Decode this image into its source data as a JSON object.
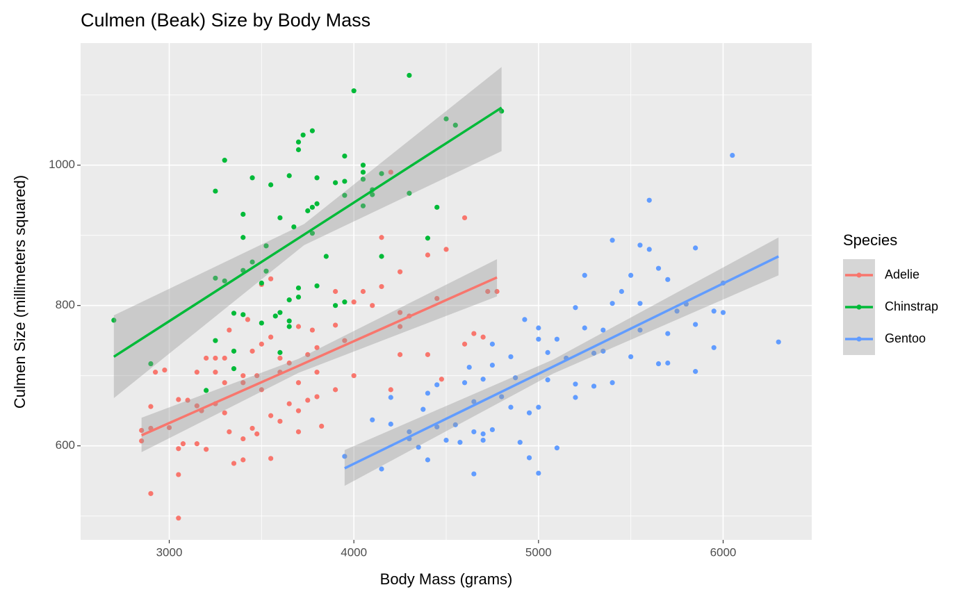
{
  "chart_data": {
    "type": "scatter",
    "title": "Culmen (Beak) Size by Body Mass",
    "x_label": "Body Mass (grams)",
    "y_label": "Culmen Size (millimeters squared)",
    "legend_title": "Species",
    "legend_position": "right",
    "xlim": [
      2520,
      6480
    ],
    "ylim": [
      466,
      1174
    ],
    "xticks": [
      3000,
      4000,
      5000,
      6000
    ],
    "yticks": [
      600,
      800,
      1000
    ],
    "xminor": [
      3500,
      4500,
      5500
    ],
    "yminor": [
      500,
      700,
      900,
      1100
    ],
    "grid": true,
    "band_color": "#999999",
    "series": [
      {
        "name": "Adelie",
        "color": "#F8766D",
        "x": [
          2850,
          2850,
          2900,
          2900,
          2900,
          2925,
          2975,
          3000,
          3050,
          3050,
          3050,
          3050,
          3075,
          3100,
          3150,
          3150,
          3150,
          3175,
          3200,
          3200,
          3250,
          3250,
          3250,
          3300,
          3300,
          3300,
          3325,
          3325,
          3350,
          3400,
          3400,
          3400,
          3400,
          3425,
          3450,
          3450,
          3475,
          3475,
          3500,
          3500,
          3500,
          3550,
          3550,
          3550,
          3550,
          3600,
          3600,
          3600,
          3650,
          3650,
          3700,
          3700,
          3700,
          3700,
          3750,
          3750,
          3775,
          3800,
          3800,
          3800,
          3825,
          3900,
          3900,
          3900,
          3950,
          4000,
          4000,
          4050,
          4100,
          4150,
          4150,
          4200,
          4200,
          4250,
          4250,
          4250,
          4250,
          4300,
          4400,
          4400,
          4450,
          4475,
          4500,
          4600,
          4600,
          4650,
          4700,
          4725,
          4775
        ],
        "values": [
          622,
          607,
          656,
          625,
          532,
          705,
          708,
          626,
          666,
          596,
          559,
          497,
          603,
          665,
          705,
          657,
          603,
          650,
          725,
          595,
          725,
          705,
          660,
          725,
          690,
          647,
          765,
          620,
          575,
          700,
          690,
          610,
          580,
          780,
          735,
          625,
          700,
          617,
          830,
          745,
          680,
          838,
          755,
          643,
          582,
          725,
          705,
          635,
          718,
          660,
          770,
          690,
          650,
          620,
          730,
          665,
          765,
          740,
          705,
          670,
          628,
          820,
          772,
          680,
          750,
          805,
          700,
          820,
          800,
          897,
          827,
          990,
          680,
          848,
          790,
          770,
          730,
          785,
          872,
          730,
          810,
          695,
          880,
          925,
          745,
          760,
          755,
          820,
          820
        ],
        "fit": {
          "x": [
            2850,
            3700,
            4775
          ],
          "values": [
            615,
            714,
            840
          ],
          "lower": [
            591,
            704,
            813
          ],
          "upper": [
            640,
            724,
            866
          ]
        }
      },
      {
        "name": "Chinstrap",
        "color": "#00BA38",
        "x": [
          2700,
          2900,
          3250,
          3300,
          3250,
          3300,
          3350,
          3350,
          3350,
          3200,
          3250,
          3400,
          3400,
          3400,
          3400,
          3450,
          3450,
          3500,
          3500,
          3525,
          3525,
          3550,
          3575,
          3600,
          3600,
          3600,
          3650,
          3650,
          3650,
          3650,
          3675,
          3700,
          3700,
          3700,
          3700,
          3725,
          3750,
          3775,
          3775,
          3775,
          3800,
          3800,
          3800,
          3850,
          3900,
          3900,
          3950,
          3950,
          3950,
          3950,
          4000,
          4050,
          4050,
          4050,
          4050,
          4100,
          4100,
          4150,
          4150,
          4300,
          4300,
          4400,
          4450,
          4500,
          4550,
          4800
        ],
        "values": [
          779,
          717,
          963,
          1007,
          839,
          835,
          789,
          735,
          710,
          679,
          750,
          930,
          897,
          850,
          787,
          982,
          862,
          832,
          775,
          885,
          849,
          972,
          785,
          925,
          790,
          733,
          985,
          808,
          778,
          770,
          912,
          1033,
          1022,
          825,
          812,
          1043,
          935,
          1049,
          940,
          903,
          982,
          945,
          828,
          870,
          975,
          800,
          1013,
          977,
          957,
          805,
          1106,
          1000,
          990,
          980,
          942,
          965,
          958,
          988,
          870,
          1128,
          960,
          896,
          940,
          1066,
          1057,
          1077
        ],
        "fit": {
          "x": [
            2700,
            3730,
            4800
          ],
          "values": [
            727,
            901,
            1082
          ],
          "lower": [
            668,
            886,
            1020
          ],
          "upper": [
            786,
            916,
            1140
          ]
        }
      },
      {
        "name": "Gentoo",
        "color": "#619CFF",
        "x": [
          3950,
          4100,
          4150,
          4200,
          4200,
          4300,
          4300,
          4350,
          4375,
          4400,
          4400,
          4450,
          4450,
          4500,
          4550,
          4575,
          4600,
          4625,
          4650,
          4650,
          4650,
          4700,
          4700,
          4700,
          4750,
          4750,
          4750,
          4800,
          4850,
          4850,
          4875,
          4900,
          4925,
          4950,
          4950,
          5000,
          5000,
          5000,
          5000,
          5050,
          5050,
          5100,
          5100,
          5150,
          5200,
          5200,
          5200,
          5250,
          5250,
          5300,
          5300,
          5350,
          5350,
          5400,
          5400,
          5400,
          5450,
          5500,
          5500,
          5550,
          5550,
          5550,
          5600,
          5600,
          5650,
          5650,
          5700,
          5700,
          5700,
          5750,
          5800,
          5850,
          5850,
          5850,
          5950,
          5950,
          6000,
          6000,
          6050,
          6300
        ],
        "values": [
          585,
          637,
          567,
          669,
          631,
          620,
          610,
          598,
          652,
          675,
          580,
          687,
          627,
          608,
          630,
          605,
          690,
          712,
          620,
          560,
          663,
          695,
          617,
          608,
          745,
          715,
          623,
          670,
          727,
          655,
          697,
          605,
          780,
          583,
          647,
          768,
          752,
          655,
          561,
          733,
          694,
          752,
          597,
          725,
          797,
          688,
          669,
          843,
          768,
          732,
          685,
          765,
          735,
          893,
          803,
          690,
          820,
          843,
          727,
          886,
          803,
          765,
          950,
          880,
          853,
          717,
          837,
          760,
          718,
          792,
          802,
          882,
          773,
          706,
          740,
          792,
          832,
          790,
          1014,
          748
        ],
        "fit": {
          "x": [
            3950,
            5080,
            6300
          ],
          "values": [
            568,
            713,
            870
          ],
          "lower": [
            543,
            703,
            843
          ],
          "upper": [
            594,
            723,
            897
          ]
        }
      }
    ]
  }
}
